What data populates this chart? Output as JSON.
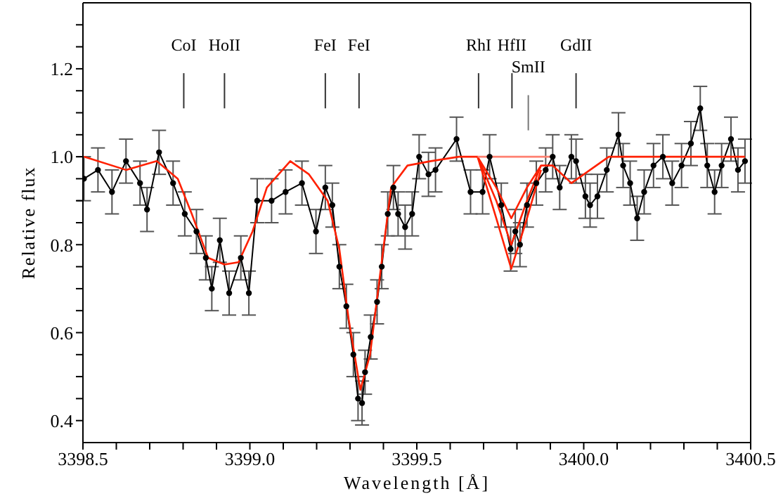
{
  "chart_data": {
    "type": "line",
    "xlabel": "Wavelength [Å]",
    "ylabel": "Relative flux",
    "xlim": [
      3398.5,
      3400.5
    ],
    "xticks": [
      3398.5,
      {
        "value": 3398.6,
        "label": null
      },
      {
        "value": 3398.7,
        "label": null
      },
      {
        "value": 3398.8,
        "label": null
      },
      {
        "value": 3398.9,
        "label": null
      },
      {
        "value": 3399.0,
        "label": "3399.0"
      },
      {
        "value": 3399.1,
        "label": null
      },
      {
        "value": 3399.2,
        "label": null
      },
      {
        "value": 3399.3,
        "label": null
      },
      {
        "value": 3399.4,
        "label": null
      },
      3399.5,
      {
        "value": 3399.6,
        "label": null
      },
      {
        "value": 3399.7,
        "label": null
      },
      {
        "value": 3399.8,
        "label": null
      },
      {
        "value": 3399.9,
        "label": null
      },
      {
        "value": 3400.0,
        "label": "3400.0"
      },
      {
        "value": 3400.1,
        "label": null
      },
      {
        "value": 3400.2,
        "label": null
      },
      {
        "value": 3400.3,
        "label": null
      },
      {
        "value": 3400.4,
        "label": null
      },
      3400.5
    ],
    "ylim": [
      0.35,
      1.35
    ],
    "yticks": [
      0.4,
      {
        "value": 0.45,
        "label": null
      },
      {
        "value": 0.5,
        "label": null
      },
      {
        "value": 0.55,
        "label": null
      },
      0.6,
      {
        "value": 0.65,
        "label": null
      },
      {
        "value": 0.7,
        "label": null
      },
      {
        "value": 0.75,
        "label": null
      },
      0.8,
      {
        "value": 0.85,
        "label": null
      },
      {
        "value": 0.9,
        "label": null
      },
      {
        "value": 0.95,
        "label": null
      },
      {
        "value": 1.0,
        "label": "1.0"
      },
      {
        "value": 1.05,
        "label": null
      },
      {
        "value": 1.1,
        "label": null
      },
      {
        "value": 1.15,
        "label": null
      },
      1.2,
      {
        "value": 1.25,
        "label": null
      },
      {
        "value": 1.3,
        "label": null
      }
    ],
    "grid": false,
    "line_style": "solid",
    "ref_lines": [
      {
        "axis": "x",
        "value": 3398.802,
        "label": "CoI"
      },
      {
        "axis": "x",
        "value": 3398.924,
        "label": "HoII"
      },
      {
        "axis": "x",
        "value": 3399.226,
        "label": "FeI"
      },
      {
        "axis": "x",
        "value": 3399.327,
        "label": "FeI"
      },
      {
        "axis": "x",
        "value": 3399.685,
        "label": "RhI"
      },
      {
        "axis": "x",
        "value": 3399.785,
        "label": "HfII"
      },
      {
        "axis": "x",
        "value": 3399.834,
        "label": "SmII",
        "color": "#777777"
      },
      {
        "axis": "x",
        "value": 3399.977,
        "label": "GdII"
      }
    ],
    "series": [
      {
        "color": "#000000",
        "marker": "circle",
        "x": [
          3398.503,
          3398.545,
          3398.587,
          3398.629,
          3398.671,
          3398.692,
          3398.728,
          3398.77,
          3398.805,
          3398.84,
          3398.868,
          3398.886,
          3398.91,
          3398.938,
          3398.973,
          3398.997,
          3399.022,
          3399.065,
          3399.107,
          3399.156,
          3399.198,
          3399.226,
          3399.247,
          3399.268,
          3399.289,
          3399.31,
          3399.324,
          3399.336,
          3399.345,
          3399.362,
          3399.381,
          3399.395,
          3399.413,
          3399.43,
          3399.444,
          3399.465,
          3399.486,
          3399.507,
          3399.535,
          3399.556,
          3399.619,
          3399.661,
          3399.697,
          3399.718,
          3399.753,
          3399.781,
          3399.795,
          3399.809,
          3399.83,
          3399.858,
          3399.886,
          3399.907,
          3399.928,
          3399.963,
          3399.977,
          3400.005,
          3400.019,
          3400.041,
          3400.069,
          3400.104,
          3400.118,
          3400.139,
          3400.16,
          3400.181,
          3400.209,
          3400.237,
          3400.265,
          3400.293,
          3400.321,
          3400.349,
          3400.37,
          3400.392,
          3400.413,
          3400.441,
          3400.462,
          3400.483
        ],
        "values": [
          0.95,
          0.97,
          0.92,
          0.99,
          0.94,
          0.88,
          1.01,
          0.94,
          0.87,
          0.83,
          0.77,
          0.7,
          0.81,
          0.69,
          0.77,
          0.69,
          0.9,
          0.9,
          0.92,
          0.94,
          0.83,
          0.93,
          0.89,
          0.75,
          0.66,
          0.55,
          0.45,
          0.44,
          0.51,
          0.59,
          0.67,
          0.75,
          0.87,
          0.93,
          0.87,
          0.84,
          0.87,
          1.0,
          0.96,
          0.97,
          1.04,
          0.92,
          0.92,
          1.0,
          0.89,
          0.79,
          0.83,
          0.8,
          0.89,
          0.94,
          0.97,
          1.0,
          0.93,
          1.0,
          0.99,
          0.91,
          0.89,
          0.91,
          0.97,
          1.05,
          0.98,
          0.94,
          0.86,
          0.92,
          0.98,
          1.0,
          0.94,
          0.98,
          1.03,
          1.11,
          0.98,
          0.92,
          0.98,
          1.04,
          0.97,
          0.99
        ],
        "errors": [
          0.05,
          0.05,
          0.05,
          0.05,
          0.05,
          0.05,
          0.05,
          0.05,
          0.05,
          0.05,
          0.05,
          0.05,
          0.05,
          0.05,
          0.05,
          0.05,
          0.05,
          0.05,
          0.05,
          0.05,
          0.05,
          0.05,
          0.05,
          0.05,
          0.05,
          0.05,
          0.05,
          0.05,
          0.05,
          0.05,
          0.05,
          0.05,
          0.05,
          0.05,
          0.05,
          0.05,
          0.05,
          0.05,
          0.05,
          0.05,
          0.05,
          0.05,
          0.05,
          0.05,
          0.05,
          0.05,
          0.05,
          0.05,
          0.05,
          0.05,
          0.05,
          0.05,
          0.05,
          0.05,
          0.05,
          0.05,
          0.05,
          0.05,
          0.05,
          0.05,
          0.05,
          0.05,
          0.05,
          0.05,
          0.05,
          0.05,
          0.05,
          0.05,
          0.05,
          0.05,
          0.05,
          0.05,
          0.05,
          0.05,
          0.05,
          0.05
        ]
      },
      {
        "color": "#ff2000",
        "marker": "none",
        "x": [
          3398.503,
          3398.629,
          3398.721,
          3398.784,
          3398.826,
          3398.875,
          3398.924,
          3398.966,
          3399.008,
          3399.051,
          3399.121,
          3399.177,
          3399.233,
          3399.268,
          3399.296,
          3399.331,
          3399.36,
          3399.388,
          3399.423,
          3399.472,
          3399.542,
          3399.626,
          3399.682,
          3399.738,
          3399.783,
          3399.83,
          3399.872,
          3399.907,
          3399.963,
          3400.019,
          3400.075,
          3400.483
        ],
        "values": [
          1.0,
          0.97,
          0.99,
          0.95,
          0.87,
          0.77,
          0.755,
          0.76,
          0.83,
          0.93,
          0.99,
          0.96,
          0.9,
          0.79,
          0.63,
          0.47,
          0.55,
          0.72,
          0.93,
          0.98,
          0.99,
          1.0,
          1.0,
          0.9,
          0.8,
          0.9,
          0.98,
          0.98,
          0.94,
          0.97,
          1.0,
          1.0
        ]
      },
      {
        "color": "#ff2000",
        "marker": "none",
        "x": [
          3399.682,
          3399.738,
          3399.783,
          3399.83,
          3399.872
        ],
        "values": [
          1.0,
          0.86,
          0.745,
          0.86,
          0.97
        ]
      },
      {
        "color": "#ff2000",
        "marker": "none",
        "x": [
          3399.682,
          3399.738,
          3399.783,
          3399.83,
          3399.872
        ],
        "values": [
          1.0,
          0.93,
          0.86,
          0.93,
          0.98
        ]
      },
      {
        "color": "#ff8070",
        "marker": "none",
        "x": [
          3399.682,
          3399.783,
          3399.907
        ],
        "values": [
          1.0,
          1.0,
          1.0
        ]
      }
    ]
  }
}
